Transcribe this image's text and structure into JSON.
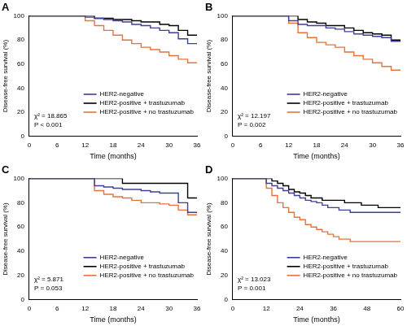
{
  "chart_data": [
    {
      "type": "line",
      "title": "A",
      "xlabel": "Time (months)",
      "ylabel": "Disease-free survival (%)",
      "x": [
        0,
        2,
        4,
        6,
        8,
        10,
        12,
        14,
        16,
        18,
        20,
        22,
        24,
        26,
        28,
        30,
        32,
        34,
        36
      ],
      "series": [
        {
          "name": "HER2-negative",
          "color": "#3f3f95",
          "line_style": "step",
          "values": [
            100,
            100,
            100,
            100,
            100,
            100,
            100,
            99,
            98,
            97,
            96,
            95,
            93,
            92,
            90,
            88,
            86,
            81,
            77
          ]
        },
        {
          "name": "HER2-positive + trastuzumab",
          "color": "#000000",
          "line_style": "step",
          "values": [
            100,
            100,
            100,
            100,
            100,
            100,
            100,
            100,
            98,
            98,
            97,
            97,
            96,
            95,
            95,
            93,
            92,
            88,
            84
          ]
        },
        {
          "name": "HER2-positive + no trastuzumab",
          "color": "#e8733a",
          "line_style": "step",
          "values": [
            100,
            100,
            100,
            100,
            100,
            100,
            100,
            96,
            92,
            88,
            84,
            80,
            77,
            74,
            72,
            70,
            67,
            64,
            61
          ]
        }
      ],
      "xlim": [
        0,
        36
      ],
      "xticks": [
        0,
        6,
        12,
        18,
        24,
        30,
        36
      ],
      "ylim": [
        0,
        100
      ],
      "yticks": [
        0,
        20,
        40,
        60,
        80,
        100
      ],
      "grid": false,
      "legend": "lower right",
      "annotations": [
        "χ² = 18.865",
        "P < 0.001"
      ]
    },
    {
      "type": "line",
      "title": "B",
      "xlabel": "Time (months)",
      "ylabel": "Disease-free survival (%)",
      "x": [
        0,
        2,
        4,
        6,
        8,
        10,
        12,
        14,
        16,
        18,
        20,
        22,
        24,
        26,
        28,
        30,
        32,
        34,
        36
      ],
      "series": [
        {
          "name": "HER2-negative",
          "color": "#3f3f95",
          "line_style": "step",
          "values": [
            100,
            100,
            100,
            100,
            100,
            100,
            100,
            96,
            93,
            92,
            92,
            90,
            89,
            87,
            85,
            84,
            83,
            82,
            79
          ]
        },
        {
          "name": "HER2-positive + trastuzumab",
          "color": "#000000",
          "line_style": "step",
          "values": [
            100,
            100,
            100,
            100,
            100,
            100,
            100,
            100,
            97,
            95,
            94,
            92,
            92,
            90,
            88,
            86,
            85,
            84,
            80
          ]
        },
        {
          "name": "HER2-positive + no trastuzumab",
          "color": "#e8733a",
          "line_style": "step",
          "values": [
            100,
            100,
            100,
            100,
            100,
            100,
            100,
            94,
            86,
            82,
            78,
            76,
            74,
            70,
            67,
            64,
            61,
            58,
            55
          ]
        }
      ],
      "xlim": [
        0,
        36
      ],
      "xticks": [
        0,
        6,
        12,
        18,
        24,
        30,
        36
      ],
      "ylim": [
        0,
        100
      ],
      "yticks": [
        0,
        20,
        40,
        60,
        80,
        100
      ],
      "grid": false,
      "legend": "lower right",
      "annotations": [
        "χ² = 12.197",
        "P = 0.002"
      ]
    },
    {
      "type": "line",
      "title": "C",
      "xlabel": "Time (months)",
      "ylabel": "Disease-free survival (%)",
      "x": [
        0,
        2,
        4,
        6,
        8,
        10,
        12,
        14,
        16,
        18,
        20,
        22,
        24,
        26,
        28,
        30,
        32,
        34,
        36
      ],
      "series": [
        {
          "name": "HER2-negative",
          "color": "#3f3f95",
          "line_style": "step",
          "values": [
            100,
            100,
            100,
            100,
            100,
            100,
            100,
            100,
            94,
            93,
            92,
            91,
            91,
            90,
            89,
            88,
            88,
            80,
            72
          ]
        },
        {
          "name": "HER2-positive + trastuzumab",
          "color": "#000000",
          "line_style": "step",
          "values": [
            100,
            100,
            100,
            100,
            100,
            100,
            100,
            100,
            100,
            100,
            100,
            96,
            96,
            96,
            96,
            96,
            96,
            96,
            84
          ]
        },
        {
          "name": "HER2-positive + no trastuzumab",
          "color": "#e8733a",
          "line_style": "step",
          "values": [
            100,
            100,
            100,
            100,
            100,
            100,
            100,
            100,
            90,
            87,
            85,
            84,
            82,
            80,
            80,
            79,
            78,
            74,
            70
          ]
        }
      ],
      "xlim": [
        0,
        36
      ],
      "xticks": [
        0,
        6,
        12,
        18,
        24,
        30,
        36
      ],
      "ylim": [
        0,
        100
      ],
      "yticks": [
        0,
        20,
        40,
        60,
        80,
        100
      ],
      "grid": false,
      "legend": "lower right",
      "annotations": [
        "χ² = 5.871",
        "P = 0.053"
      ]
    },
    {
      "type": "line",
      "title": "D",
      "xlabel": "Time (months)",
      "ylabel": "Disease-free survival (%)",
      "x": [
        0,
        2,
        4,
        6,
        8,
        10,
        12,
        14,
        16,
        18,
        20,
        22,
        24,
        26,
        28,
        30,
        32,
        34,
        36,
        38,
        40,
        42,
        44,
        46,
        48,
        50,
        52,
        54,
        56,
        58,
        60
      ],
      "series": [
        {
          "name": "HER2-negative",
          "color": "#3f3f95",
          "line_style": "step",
          "values": [
            100,
            100,
            100,
            100,
            100,
            100,
            100,
            96,
            94,
            92,
            90,
            88,
            86,
            84,
            82,
            81,
            80,
            78,
            76,
            76,
            74,
            74,
            72,
            72,
            72,
            72,
            72,
            72,
            72,
            72,
            72
          ]
        },
        {
          "name": "HER2-positive + trastuzumab",
          "color": "#000000",
          "line_style": "step",
          "values": [
            100,
            100,
            100,
            100,
            100,
            100,
            100,
            100,
            98,
            96,
            94,
            91,
            89,
            88,
            86,
            84,
            84,
            82,
            82,
            82,
            82,
            80,
            80,
            80,
            78,
            78,
            78,
            76,
            76,
            76,
            76
          ]
        },
        {
          "name": "HER2-positive + no trastuzumab",
          "color": "#e8733a",
          "line_style": "step",
          "values": [
            100,
            100,
            100,
            100,
            100,
            100,
            100,
            92,
            86,
            80,
            76,
            72,
            68,
            66,
            62,
            60,
            58,
            56,
            54,
            52,
            50,
            50,
            48,
            48,
            48,
            48,
            48,
            48,
            48,
            48,
            48
          ]
        }
      ],
      "xlim": [
        0,
        60
      ],
      "xticks": [
        0,
        12,
        24,
        36,
        48,
        60
      ],
      "ylim": [
        0,
        100
      ],
      "yticks": [
        0,
        20,
        40,
        60,
        80,
        100
      ],
      "grid": false,
      "legend": "lower right",
      "annotations": [
        "χ² = 13.023",
        "P = 0.001"
      ]
    }
  ]
}
